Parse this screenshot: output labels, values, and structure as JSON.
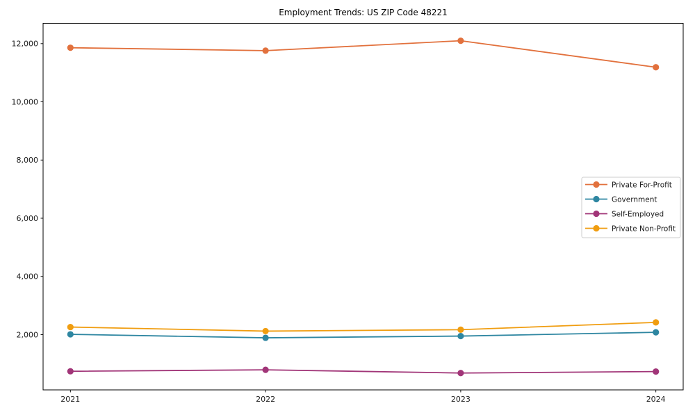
{
  "title": "Employment Trends: US ZIP Code 48221",
  "chart_data": {
    "type": "line",
    "title": "Employment Trends: US ZIP Code 48221",
    "xlabel": "",
    "ylabel": "",
    "x": [
      2021,
      2022,
      2023,
      2024
    ],
    "x_tick_labels": [
      "2021",
      "2022",
      "2023",
      "2024"
    ],
    "y_ticks": [
      2000,
      4000,
      6000,
      8000,
      10000,
      12000
    ],
    "y_tick_labels": [
      "2,000",
      "4,000",
      "6,000",
      "8,000",
      "10,000",
      "12,000"
    ],
    "xlim": [
      2020.86,
      2024.14
    ],
    "ylim": [
      100,
      12700
    ],
    "grid": false,
    "marker": "circle",
    "legend_position": "center right",
    "series": [
      {
        "name": "Private For-Profit",
        "color": "#e2713d",
        "values": [
          11860,
          11760,
          12100,
          11190
        ]
      },
      {
        "name": "Government",
        "color": "#2e86a1",
        "values": [
          2010,
          1890,
          1950,
          2080
        ]
      },
      {
        "name": "Self-Employed",
        "color": "#a13578",
        "values": [
          740,
          790,
          680,
          730
        ]
      },
      {
        "name": "Private Non-Profit",
        "color": "#f09d10",
        "values": [
          2260,
          2120,
          2170,
          2420
        ]
      }
    ],
    "colors": {
      "spine": "#000000",
      "tick_text": "#1a1a1a",
      "legend_border": "#cccccc",
      "legend_bg": "#ffffff"
    }
  }
}
